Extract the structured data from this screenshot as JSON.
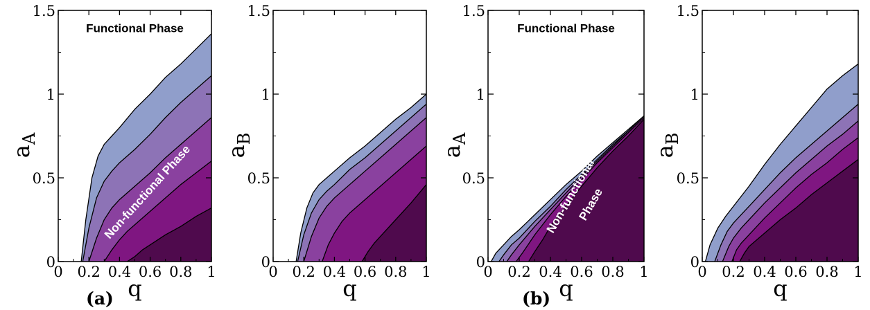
{
  "figure_labels": [
    "(a)",
    "(b)"
  ],
  "chart_data": [
    {
      "type": "area",
      "xlabel": "q",
      "ylabel": "a",
      "ylabel_sub": "A",
      "xlim": [
        0,
        1
      ],
      "ylim": [
        0,
        1.5
      ],
      "xticks": [
        "0",
        "0.2",
        "0.4",
        "0.6",
        "0.8",
        "1"
      ],
      "yticks": [
        "0",
        "0.5",
        "1",
        "1.5"
      ],
      "annotations": [
        {
          "text": "Functional Phase",
          "x": 0.5,
          "y": 1.37,
          "rotate": 0,
          "color": "#000000"
        },
        {
          "text": "Non-functional Phase",
          "x": 0.6,
          "y": 0.4,
          "rotate": -48,
          "color": "#ffffff"
        }
      ],
      "series": [
        {
          "x": [
            0.15,
            0.18,
            0.22,
            0.26,
            0.3,
            0.35,
            0.4,
            0.5,
            0.6,
            0.7,
            0.8,
            0.9,
            1.0
          ],
          "y": [
            0,
            0.25,
            0.5,
            0.63,
            0.7,
            0.75,
            0.8,
            0.91,
            1.0,
            1.1,
            1.18,
            1.27,
            1.36
          ]
        },
        {
          "x": [
            0.16,
            0.2,
            0.25,
            0.3,
            0.35,
            0.4,
            0.5,
            0.6,
            0.7,
            0.8,
            0.9,
            1.0
          ],
          "y": [
            0,
            0.2,
            0.38,
            0.48,
            0.54,
            0.59,
            0.67,
            0.76,
            0.86,
            0.95,
            1.03,
            1.11
          ]
        },
        {
          "x": [
            0.2,
            0.25,
            0.3,
            0.35,
            0.4,
            0.5,
            0.6,
            0.7,
            0.8,
            0.9,
            1.0
          ],
          "y": [
            0,
            0.14,
            0.25,
            0.32,
            0.37,
            0.45,
            0.53,
            0.62,
            0.7,
            0.78,
            0.86
          ]
        },
        {
          "x": [
            0.3,
            0.35,
            0.4,
            0.45,
            0.5,
            0.6,
            0.7,
            0.8,
            0.9,
            1.0
          ],
          "y": [
            0,
            0.07,
            0.13,
            0.18,
            0.22,
            0.3,
            0.38,
            0.46,
            0.53,
            0.6
          ]
        },
        {
          "x": [
            0.45,
            0.5,
            0.55,
            0.6,
            0.7,
            0.8,
            0.9,
            1.0
          ],
          "y": [
            0,
            0.03,
            0.07,
            0.1,
            0.16,
            0.21,
            0.27,
            0.32
          ]
        }
      ],
      "colors": [
        "#909ecb",
        "#8d73b6",
        "#8a419f",
        "#7f1681",
        "#4f0a4d"
      ]
    },
    {
      "type": "area",
      "xlabel": "q",
      "ylabel": "a",
      "ylabel_sub": "B",
      "xlim": [
        0,
        1
      ],
      "ylim": [
        0,
        1.5
      ],
      "xticks": [
        "0",
        "0.2",
        "0.4",
        "0.6",
        "0.8",
        "1"
      ],
      "yticks": [
        "0",
        "0.5",
        "1",
        "1.5"
      ],
      "annotations": [],
      "series": [
        {
          "x": [
            0.15,
            0.18,
            0.22,
            0.26,
            0.3,
            0.35,
            0.4,
            0.5,
            0.6,
            0.7,
            0.8,
            0.9,
            1.0
          ],
          "y": [
            0,
            0.17,
            0.32,
            0.41,
            0.46,
            0.5,
            0.54,
            0.62,
            0.69,
            0.77,
            0.85,
            0.92,
            1.0
          ]
        },
        {
          "x": [
            0.16,
            0.2,
            0.25,
            0.3,
            0.35,
            0.4,
            0.5,
            0.6,
            0.7,
            0.8,
            0.9,
            1.0
          ],
          "y": [
            0,
            0.16,
            0.29,
            0.37,
            0.42,
            0.46,
            0.55,
            0.62,
            0.7,
            0.78,
            0.86,
            0.94
          ]
        },
        {
          "x": [
            0.2,
            0.25,
            0.3,
            0.35,
            0.4,
            0.5,
            0.6,
            0.7,
            0.8,
            0.9,
            1.0
          ],
          "y": [
            0,
            0.15,
            0.26,
            0.33,
            0.38,
            0.46,
            0.54,
            0.62,
            0.7,
            0.78,
            0.86
          ]
        },
        {
          "x": [
            0.32,
            0.36,
            0.4,
            0.45,
            0.5,
            0.6,
            0.7,
            0.8,
            0.9,
            1.0
          ],
          "y": [
            0,
            0.1,
            0.17,
            0.24,
            0.29,
            0.37,
            0.45,
            0.53,
            0.61,
            0.69
          ]
        },
        {
          "x": [
            0.58,
            0.62,
            0.66,
            0.7,
            0.8,
            0.9,
            1.0
          ],
          "y": [
            0,
            0.06,
            0.11,
            0.15,
            0.25,
            0.35,
            0.46
          ]
        }
      ],
      "colors": [
        "#909ecb",
        "#8d73b6",
        "#8a419f",
        "#7f1681",
        "#4f0a4d"
      ]
    },
    {
      "type": "area",
      "xlabel": "q",
      "ylabel": "a",
      "ylabel_sub": "A",
      "xlim": [
        0,
        1
      ],
      "ylim": [
        0,
        1.5
      ],
      "xticks": [
        "0",
        "0.2",
        "0.4",
        "0.6",
        "0.8",
        "1"
      ],
      "yticks": [
        "0",
        "0.5",
        "1",
        "1.5"
      ],
      "annotations": [
        {
          "text": "Functional Phase",
          "x": 0.5,
          "y": 1.37,
          "rotate": 0,
          "color": "#000000"
        },
        {
          "text": "Non-functional",
          "x": 0.55,
          "y": 0.38,
          "rotate": -60,
          "color": "#ffffff"
        },
        {
          "text": "Phase",
          "x": 0.68,
          "y": 0.33,
          "rotate": -60,
          "color": "#ffffff"
        }
      ],
      "series": [
        {
          "x": [
            0.02,
            0.05,
            0.1,
            0.15,
            0.2,
            0.3,
            0.4,
            0.5,
            0.6,
            0.7,
            0.8,
            0.9,
            1.0
          ],
          "y": [
            0,
            0.05,
            0.1,
            0.15,
            0.19,
            0.28,
            0.37,
            0.46,
            0.54,
            0.63,
            0.71,
            0.79,
            0.87
          ]
        },
        {
          "x": [
            0.07,
            0.1,
            0.15,
            0.2,
            0.3,
            0.4,
            0.5,
            0.6,
            0.7,
            0.8,
            0.9,
            1.0
          ],
          "y": [
            0,
            0.04,
            0.1,
            0.14,
            0.24,
            0.33,
            0.43,
            0.52,
            0.61,
            0.7,
            0.78,
            0.87
          ]
        },
        {
          "x": [
            0.12,
            0.15,
            0.2,
            0.3,
            0.4,
            0.5,
            0.6,
            0.7,
            0.8,
            0.9,
            1.0
          ],
          "y": [
            0,
            0.04,
            0.1,
            0.21,
            0.31,
            0.41,
            0.51,
            0.6,
            0.69,
            0.78,
            0.87
          ]
        },
        {
          "x": [
            0.18,
            0.22,
            0.3,
            0.4,
            0.5,
            0.6,
            0.7,
            0.8,
            0.9,
            1.0
          ],
          "y": [
            0,
            0.05,
            0.16,
            0.28,
            0.39,
            0.49,
            0.59,
            0.68,
            0.77,
            0.86
          ]
        },
        {
          "x": [
            0.26,
            0.3,
            0.35,
            0.4,
            0.5,
            0.6,
            0.7,
            0.8,
            0.9,
            1.0
          ],
          "y": [
            0,
            0.06,
            0.13,
            0.21,
            0.33,
            0.45,
            0.56,
            0.66,
            0.75,
            0.85
          ]
        }
      ],
      "colors": [
        "#909ecb",
        "#8d73b6",
        "#8a419f",
        "#7f1681",
        "#4f0a4d"
      ]
    },
    {
      "type": "area",
      "xlabel": "q",
      "ylabel": "a",
      "ylabel_sub": "B",
      "xlim": [
        0,
        1
      ],
      "ylim": [
        0,
        1.5
      ],
      "xticks": [
        "0",
        "0.2",
        "0.4",
        "0.6",
        "0.8",
        "1"
      ],
      "yticks": [
        "0",
        "0.5",
        "1",
        "1.5"
      ],
      "annotations": [],
      "series": [
        {
          "x": [
            0.02,
            0.05,
            0.1,
            0.15,
            0.2,
            0.3,
            0.4,
            0.5,
            0.6,
            0.7,
            0.8,
            0.9,
            1.0
          ],
          "y": [
            0,
            0.1,
            0.2,
            0.27,
            0.33,
            0.45,
            0.58,
            0.7,
            0.81,
            0.92,
            1.03,
            1.11,
            1.18
          ]
        },
        {
          "x": [
            0.08,
            0.12,
            0.16,
            0.2,
            0.25,
            0.3,
            0.4,
            0.5,
            0.6,
            0.7,
            0.8,
            0.9,
            1.0
          ],
          "y": [
            0,
            0.1,
            0.18,
            0.23,
            0.28,
            0.33,
            0.43,
            0.53,
            0.62,
            0.7,
            0.78,
            0.86,
            0.94
          ]
        },
        {
          "x": [
            0.13,
            0.17,
            0.2,
            0.25,
            0.3,
            0.4,
            0.5,
            0.6,
            0.7,
            0.8,
            0.9,
            1.0
          ],
          "y": [
            0,
            0.09,
            0.14,
            0.2,
            0.25,
            0.35,
            0.44,
            0.53,
            0.61,
            0.69,
            0.76,
            0.84
          ]
        },
        {
          "x": [
            0.19,
            0.22,
            0.25,
            0.3,
            0.4,
            0.5,
            0.6,
            0.7,
            0.8,
            0.9,
            1.0
          ],
          "y": [
            0,
            0.07,
            0.11,
            0.16,
            0.26,
            0.35,
            0.44,
            0.52,
            0.59,
            0.67,
            0.74
          ]
        },
        {
          "x": [
            0.24,
            0.27,
            0.3,
            0.35,
            0.4,
            0.5,
            0.6,
            0.7,
            0.8,
            0.9,
            1.0
          ],
          "y": [
            0,
            0.05,
            0.09,
            0.13,
            0.17,
            0.25,
            0.32,
            0.4,
            0.47,
            0.54,
            0.61
          ]
        }
      ],
      "colors": [
        "#909ecb",
        "#8d73b6",
        "#8a419f",
        "#7f1681",
        "#4f0a4d"
      ]
    }
  ]
}
